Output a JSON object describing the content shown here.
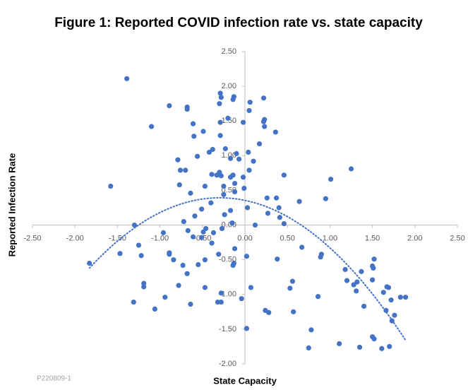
{
  "chart_data": {
    "type": "scatter",
    "title": "Figure 1: Reported COVID infection rate vs. state capacity",
    "x_label": "State Capacity",
    "y_label": "Reported Infection Rate",
    "footnote": "P220809-1",
    "color": "#4472c4",
    "trendline": {
      "order": 2,
      "style": "dotted",
      "color": "#4472c4"
    },
    "xlim": [
      -2.5,
      2.5
    ],
    "xticks": [
      {
        "value": -2.5,
        "label": "-2.50"
      },
      {
        "value": -2,
        "label": "-2.00"
      },
      {
        "value": -1.5,
        "label": "-1.50"
      },
      {
        "value": -1,
        "label": "-1.00"
      },
      {
        "value": -0.5,
        "label": "-0.50"
      },
      {
        "value": 0,
        "label": "0.00"
      },
      {
        "value": 0.5,
        "label": "0.50"
      },
      {
        "value": 1,
        "label": "1.00"
      },
      {
        "value": 1.5,
        "label": "1.50"
      },
      {
        "value": 2,
        "label": "2.00"
      },
      {
        "value": 2.5,
        "label": "2.50"
      }
    ],
    "ylim": [
      -2,
      2.5
    ],
    "yticks": [
      {
        "value": -2,
        "label": "-2.00"
      },
      {
        "value": -1.5,
        "label": "-1.50"
      },
      {
        "value": -1,
        "label": "-1.00"
      },
      {
        "value": -0.5,
        "label": "-0.50"
      },
      {
        "value": 0,
        "label": "0.00"
      },
      {
        "value": 0.5,
        "label": "0.50"
      },
      {
        "value": 1,
        "label": "1.00"
      },
      {
        "value": 1.5,
        "label": "1.50"
      },
      {
        "value": 2,
        "label": "2.00"
      },
      {
        "value": 2.5,
        "label": "2.50"
      }
    ],
    "x": [
      -1.39,
      -1.58,
      -1.83,
      -1.47,
      -1.3,
      -1.25,
      -1.22,
      -1.19,
      -1.19,
      -1.31,
      -1.06,
      -1.1,
      -0.96,
      -0.94,
      -0.89,
      -0.89,
      -0.89,
      -0.84,
      -0.79,
      -0.77,
      -0.76,
      -0.7,
      -0.68,
      -0.68,
      -0.72,
      -0.78,
      -0.73,
      -0.68,
      -0.67,
      -0.64,
      -0.61,
      -0.61,
      -0.6,
      -0.64,
      -0.59,
      -0.56,
      -0.55,
      -0.51,
      -0.49,
      -0.51,
      -0.49,
      -0.47,
      -0.47,
      -0.47,
      -0.46,
      -0.42,
      -0.39,
      -0.38,
      -0.37,
      -0.4,
      -0.39,
      -0.33,
      -0.31,
      -0.3,
      -0.29,
      -0.28,
      -0.29,
      -0.29,
      -0.3,
      -0.28,
      -0.32,
      -0.28,
      -0.28,
      -0.27,
      -0.25,
      -0.25,
      -0.24,
      -0.23,
      -0.2,
      -0.17,
      -0.17,
      -0.17,
      -0.14,
      -0.15,
      -0.14,
      -0.13,
      -0.12,
      -0.13,
      -0.14,
      -0.1,
      -0.07,
      -0.12,
      -0.12,
      -0.02,
      -0.02,
      -0.01,
      -0.04,
      0.02,
      0.02,
      0.04,
      0.05,
      0.06,
      0.05,
      0.03,
      0.07,
      0.1,
      0.12,
      0.17,
      0.22,
      0.23,
      0.22,
      0.23,
      0.26,
      0.27,
      0.24,
      0.28,
      0.36,
      0.37,
      0.38,
      0.4,
      0.41,
      0.46,
      0.46,
      0.53,
      0.56,
      0.57,
      0.64,
      0.67,
      0.75,
      0.78,
      0.86,
      0.89,
      0.9,
      0.95,
      1.01,
      1.11,
      1.18,
      1.2,
      1.25,
      1.28,
      1.32,
      1.31,
      1.35,
      1.37,
      1.4,
      1.5,
      1.52,
      1.5,
      1.51,
      1.5,
      1.52,
      1.61,
      1.63,
      1.67,
      1.69,
      1.66,
      1.7,
      1.72,
      1.73,
      1.76,
      1.83,
      1.89
    ],
    "values": [
      2.11,
      0.56,
      -0.55,
      -0.41,
      0.0,
      -0.29,
      -0.44,
      -0.84,
      -0.89,
      -1.11,
      -1.21,
      1.42,
      -0.11,
      -1.04,
      1.72,
      -0.4,
      -0.42,
      -0.5,
      0.94,
      0.58,
      0.79,
      0.79,
      1.7,
      1.67,
      0.05,
      -0.87,
      -0.58,
      -0.7,
      -0.08,
      0.46,
      -0.17,
      1.46,
      1.28,
      -1.14,
      0.13,
      0.99,
      -0.57,
      -0.18,
      1.35,
      0.23,
      -0.1,
      0.56,
      -0.5,
      -0.9,
      -0.05,
      1.05,
      0.73,
      1.09,
      -0.11,
      0.32,
      -0.26,
      0.72,
      -0.42,
      1.75,
      1.9,
      1.84,
      1.48,
      1.29,
      0.76,
      0.71,
      -1.11,
      -1.11,
      -0.98,
      -0.05,
      0.56,
      0.44,
      0.15,
      1.1,
      1.54,
      0.96,
      0.69,
      0.21,
      0.72,
      0.03,
      1.81,
      1.85,
      -0.34,
      -0.55,
      -0.58,
      1.03,
      0.95,
      0.6,
      0.48,
      1.48,
      0.69,
      0.53,
      -1.06,
      -0.45,
      -1.49,
      1.05,
      0.79,
      1.77,
      1.65,
      0.25,
      -0.9,
      0.92,
      0.0,
      1.17,
      1.49,
      1.52,
      1.83,
      1.42,
      0.39,
      0.17,
      -1.23,
      -1.26,
      1.34,
      0.39,
      -0.49,
      0.25,
      0.11,
      0.02,
      0.72,
      -0.91,
      -0.81,
      -1.25,
      0.34,
      -0.32,
      -1.77,
      -1.51,
      -1.03,
      -0.46,
      -0.42,
      0.38,
      0.66,
      -1.71,
      -0.64,
      -0.8,
      0.81,
      -0.86,
      -0.82,
      -0.95,
      -1.76,
      -0.67,
      -1.17,
      -0.59,
      -0.49,
      -0.79,
      -0.62,
      -1.61,
      -1.64,
      -1.78,
      -0.97,
      -0.89,
      -0.9,
      -1.23,
      -1.75,
      -1.08,
      -1.38,
      -1.3,
      -1.04,
      -1.04
    ]
  }
}
